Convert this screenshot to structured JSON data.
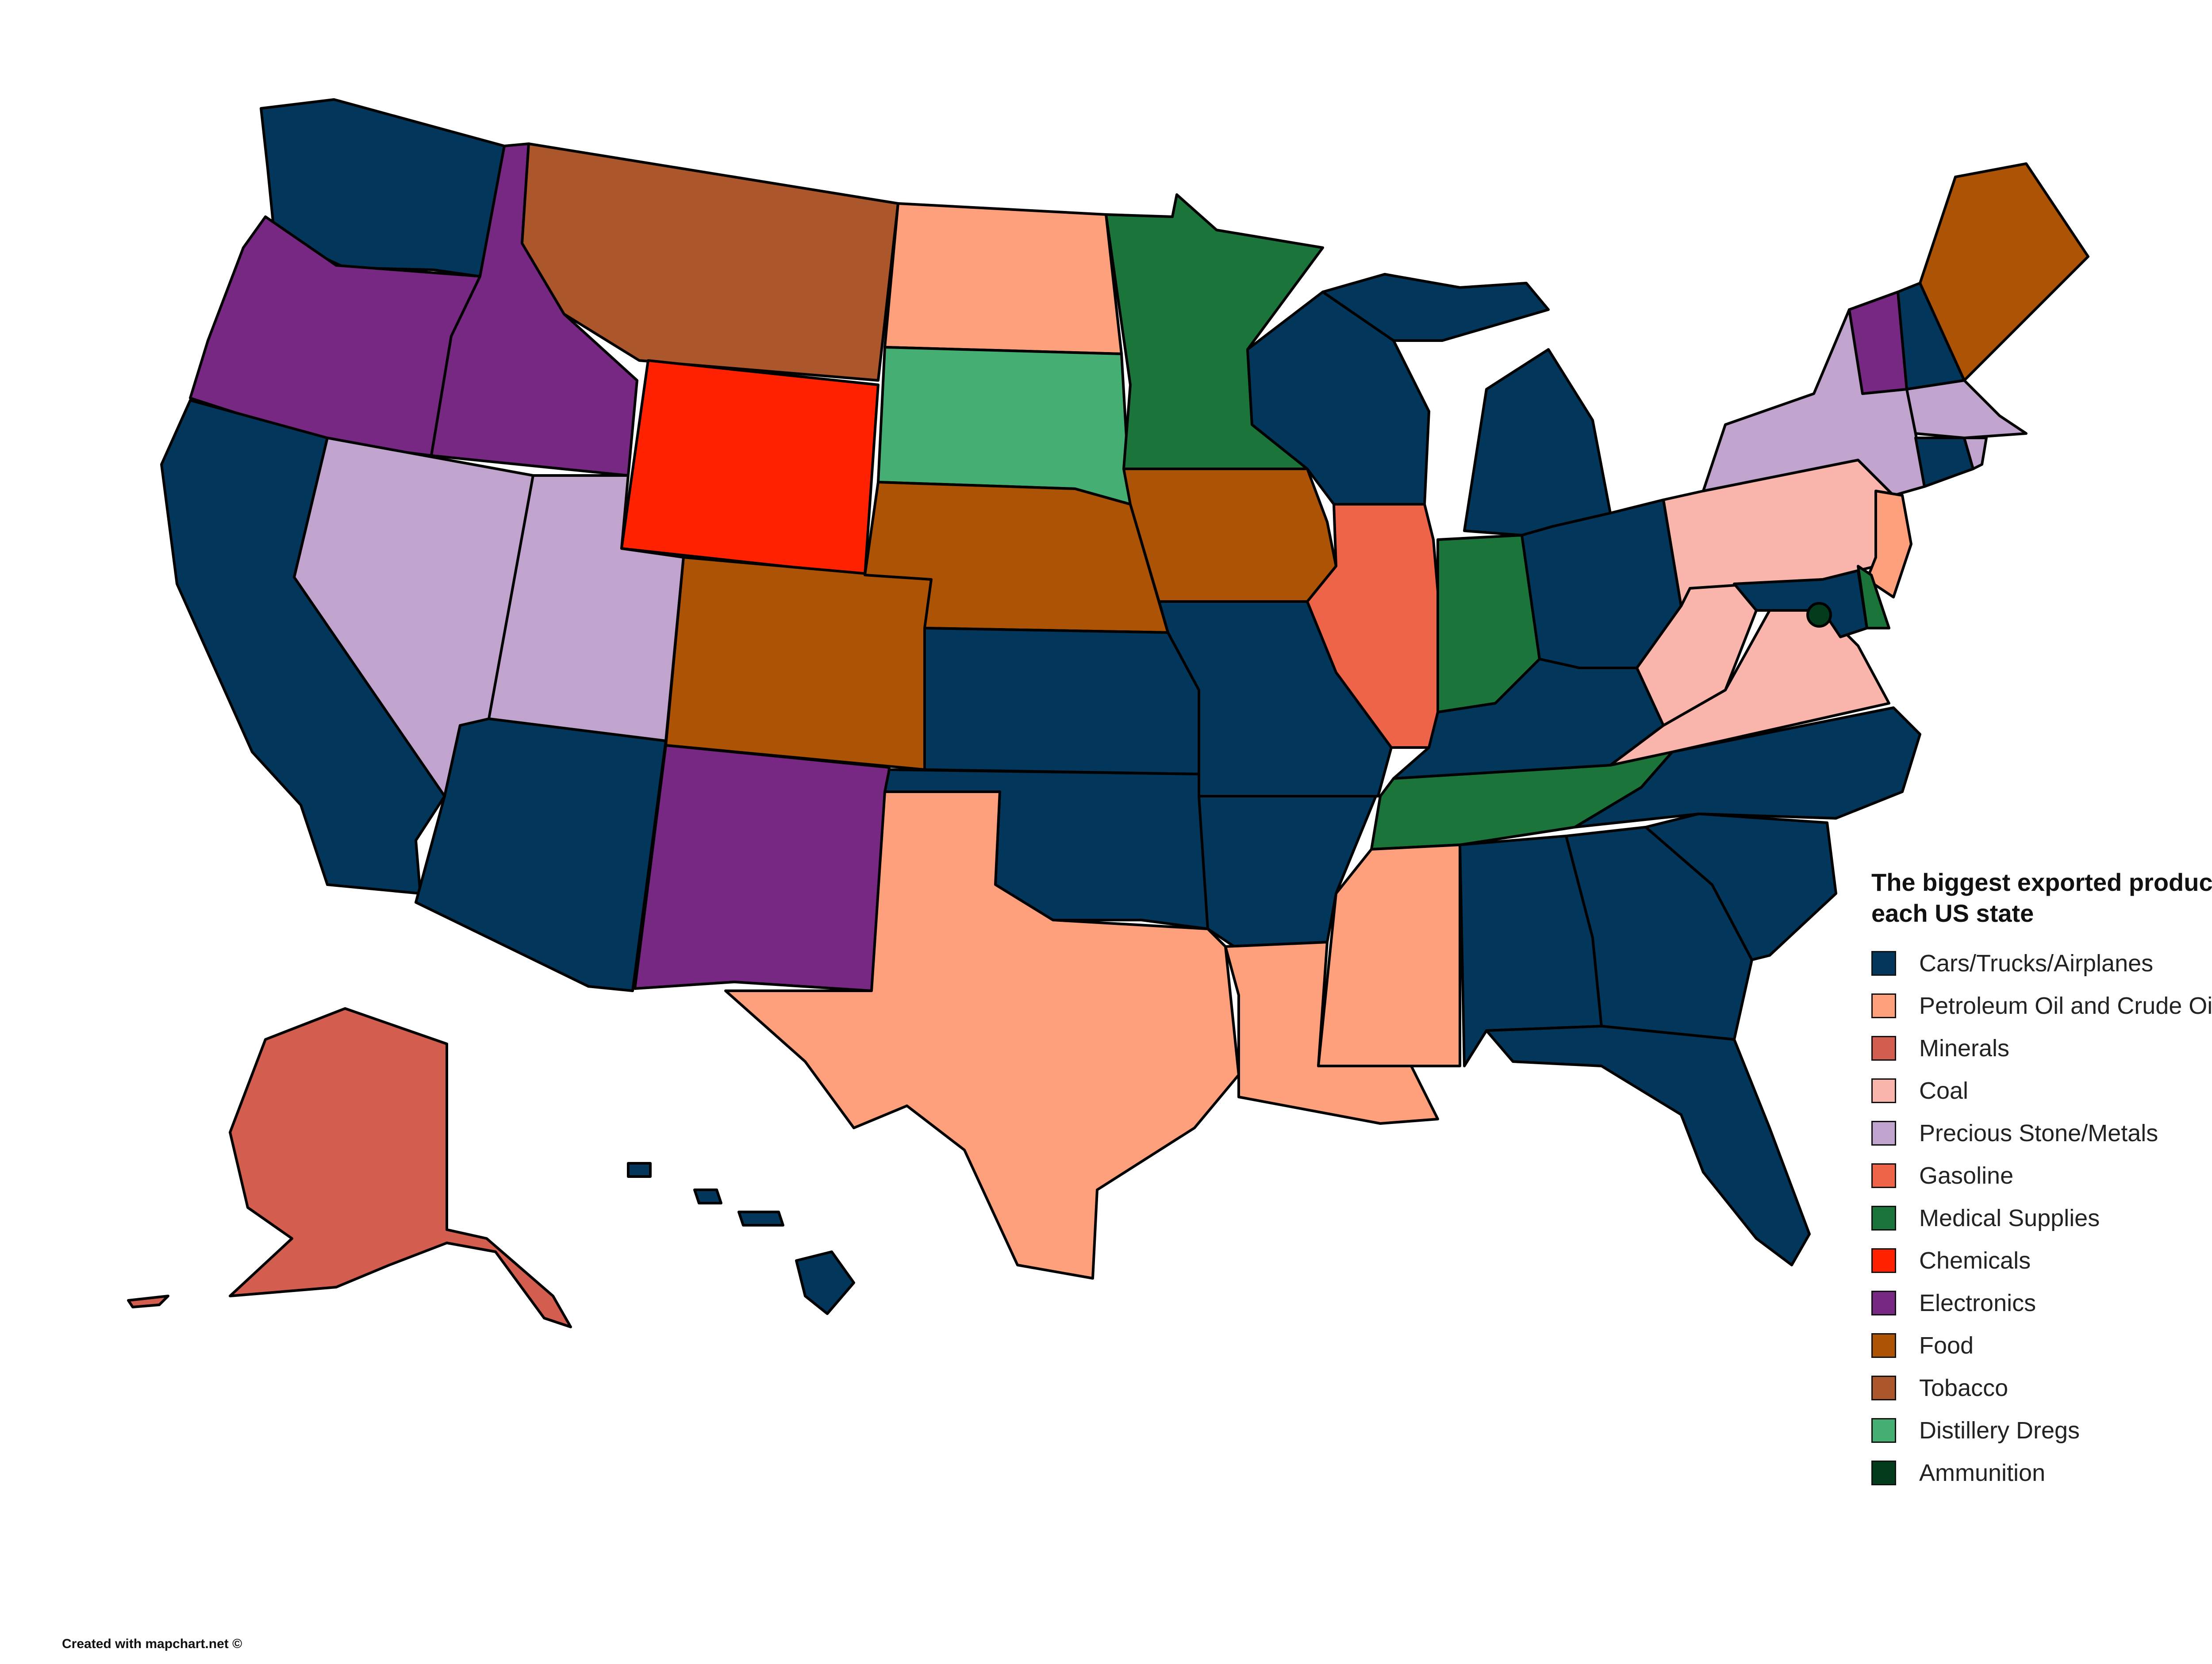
{
  "legend": {
    "title": "The biggest exported product of each US state",
    "items": [
      {
        "key": "cars",
        "label": "Cars/Trucks/Airplanes",
        "color": "#02375b"
      },
      {
        "key": "petroleum",
        "label": "Petroleum Oil and Crude Oil",
        "color": "#fda07b"
      },
      {
        "key": "minerals",
        "label": "Minerals",
        "color": "#d35e4f"
      },
      {
        "key": "coal",
        "label": "Coal",
        "color": "#f9b5ab"
      },
      {
        "key": "precious",
        "label": "Precious Stone/Metals",
        "color": "#c0a4cd"
      },
      {
        "key": "gasoline",
        "label": "Gasoline",
        "color": "#ee6449"
      },
      {
        "key": "medical",
        "label": "Medical Supplies",
        "color": "#1b743a"
      },
      {
        "key": "chemicals",
        "label": "Chemicals",
        "color": "#ff2100"
      },
      {
        "key": "electronics",
        "label": "Electronics",
        "color": "#762882"
      },
      {
        "key": "food",
        "label": "Food",
        "color": "#ad5305"
      },
      {
        "key": "tobacco",
        "label": "Tobacco",
        "color": "#ab572b"
      },
      {
        "key": "distillery",
        "label": "Distillery Dregs",
        "color": "#44ae73"
      },
      {
        "key": "ammunition",
        "label": "Ammunition",
        "color": "#033c1c"
      }
    ]
  },
  "states": [
    {
      "name": "WA",
      "category": "cars"
    },
    {
      "name": "OR",
      "category": "electronics"
    },
    {
      "name": "CA",
      "category": "cars"
    },
    {
      "name": "ID",
      "category": "electronics"
    },
    {
      "name": "NV",
      "category": "precious"
    },
    {
      "name": "UT",
      "category": "precious"
    },
    {
      "name": "AZ",
      "category": "cars"
    },
    {
      "name": "MT",
      "category": "tobacco"
    },
    {
      "name": "WY",
      "category": "chemicals"
    },
    {
      "name": "CO",
      "category": "food"
    },
    {
      "name": "NM",
      "category": "electronics"
    },
    {
      "name": "ND",
      "category": "petroleum"
    },
    {
      "name": "SD",
      "category": "distillery"
    },
    {
      "name": "NE",
      "category": "food"
    },
    {
      "name": "KS",
      "category": "cars"
    },
    {
      "name": "OK",
      "category": "cars"
    },
    {
      "name": "TX",
      "category": "petroleum"
    },
    {
      "name": "MN",
      "category": "medical"
    },
    {
      "name": "IA",
      "category": "food"
    },
    {
      "name": "MO",
      "category": "cars"
    },
    {
      "name": "AR",
      "category": "cars"
    },
    {
      "name": "LA",
      "category": "petroleum"
    },
    {
      "name": "WI",
      "category": "cars"
    },
    {
      "name": "IL",
      "category": "gasoline"
    },
    {
      "name": "MI",
      "category": "cars"
    },
    {
      "name": "IN",
      "category": "medical"
    },
    {
      "name": "OH",
      "category": "cars"
    },
    {
      "name": "KY",
      "category": "cars"
    },
    {
      "name": "TN",
      "category": "medical"
    },
    {
      "name": "MS",
      "category": "petroleum"
    },
    {
      "name": "AL",
      "category": "cars"
    },
    {
      "name": "GA",
      "category": "cars"
    },
    {
      "name": "FL",
      "category": "cars"
    },
    {
      "name": "SC",
      "category": "cars"
    },
    {
      "name": "NC",
      "category": "cars"
    },
    {
      "name": "VA",
      "category": "coal"
    },
    {
      "name": "WV",
      "category": "coal"
    },
    {
      "name": "PA",
      "category": "coal"
    },
    {
      "name": "NY",
      "category": "precious"
    },
    {
      "name": "VT",
      "category": "electronics"
    },
    {
      "name": "NH",
      "category": "cars"
    },
    {
      "name": "ME",
      "category": "food"
    },
    {
      "name": "MA",
      "category": "precious"
    },
    {
      "name": "RI",
      "category": "precious"
    },
    {
      "name": "CT",
      "category": "cars"
    },
    {
      "name": "NJ",
      "category": "petroleum"
    },
    {
      "name": "DE",
      "category": "medical"
    },
    {
      "name": "MD",
      "category": "cars"
    },
    {
      "name": "DC",
      "category": "ammunition"
    },
    {
      "name": "AK",
      "category": "minerals"
    },
    {
      "name": "HI",
      "category": "cars"
    }
  ],
  "credit": "Created with mapchart.net ©"
}
